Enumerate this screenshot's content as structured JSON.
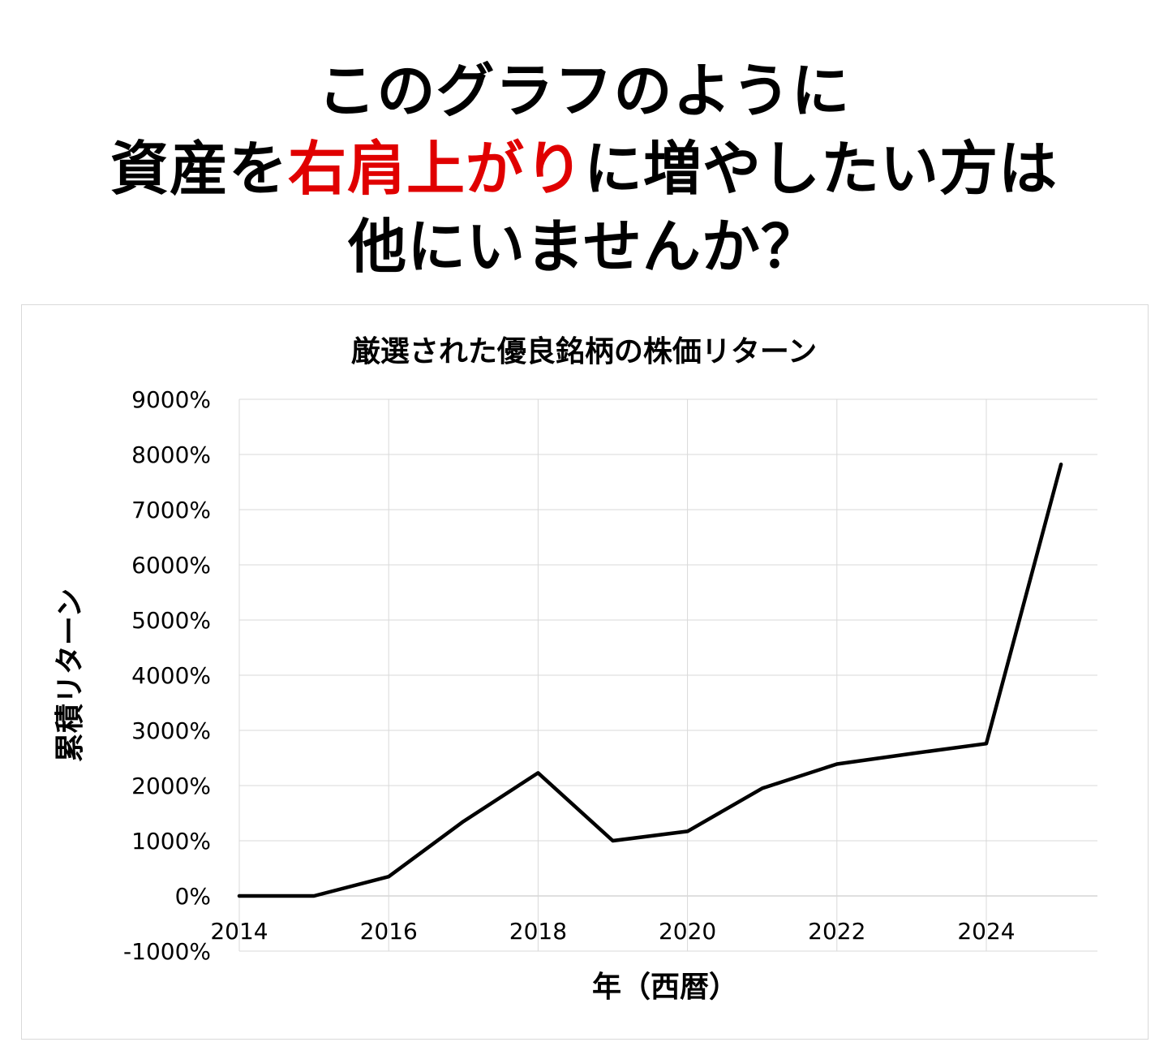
{
  "headline": {
    "line1": "このグラフのように",
    "line2_prefix": "資産を",
    "line2_highlight": "右肩上がり",
    "line2_suffix": "に増やしたい方は",
    "line3": "他にいませんか？"
  },
  "colors": {
    "highlight": "#e00000",
    "line": "#000000",
    "grid": "#d9d9d9"
  },
  "chart_data": {
    "type": "line",
    "title": "厳選された優良銘柄の株価リターン",
    "xlabel": "年（西暦）",
    "ylabel": "累積リターン",
    "xlim": [
      2014,
      2025.5
    ],
    "ylim": [
      -1000,
      9000
    ],
    "x_ticks": [
      2014,
      2016,
      2018,
      2020,
      2022,
      2024
    ],
    "x_tick_labels": [
      "2014",
      "2016",
      "2018",
      "2020",
      "2022",
      "2024"
    ],
    "y_ticks": [
      -1000,
      0,
      1000,
      2000,
      3000,
      4000,
      5000,
      6000,
      7000,
      8000,
      9000
    ],
    "y_tick_labels": [
      "-1000%",
      "0%",
      "1000%",
      "2000%",
      "3000%",
      "4000%",
      "5000%",
      "6000%",
      "7000%",
      "8000%",
      "9000%"
    ],
    "grid": true,
    "series": [
      {
        "x": [
          2014,
          2015,
          2016,
          2017,
          2018,
          2019,
          2020,
          2021,
          2022,
          2023,
          2024,
          2025
        ],
        "values": [
          0,
          0,
          350,
          1350,
          2230,
          1000,
          1170,
          1950,
          2390,
          2580,
          2760,
          7820
        ]
      }
    ]
  }
}
